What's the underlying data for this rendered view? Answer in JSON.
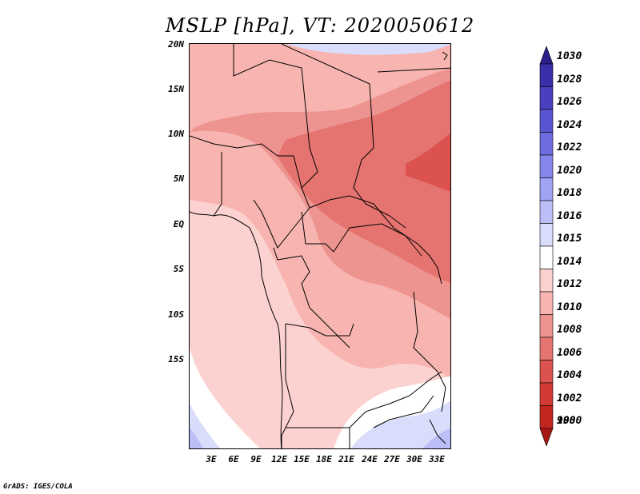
{
  "title": "MSLP [hPa], VT: 2020050612",
  "credit": "GrADS: IGES/COLA",
  "lat_labels": [
    "20N",
    "15N",
    "10N",
    "5N",
    "EQ",
    "5S",
    "10S",
    "15S"
  ],
  "lon_labels": [
    "3E",
    "6E",
    "9E",
    "12E",
    "15E",
    "18E",
    "21E",
    "24E",
    "27E",
    "30E",
    "33E"
  ],
  "colorbar": {
    "labels": [
      "1030",
      "1028",
      "1026",
      "1024",
      "1022",
      "1020",
      "1018",
      "1016",
      "1015",
      "1014",
      "1012",
      "1010",
      "1008",
      "1006",
      "1004",
      "1002",
      "1000",
      "998"
    ],
    "colors": [
      "#2b1f8c",
      "#3a2fa8",
      "#4a40bf",
      "#5a55d2",
      "#6d6ce0",
      "#8585ec",
      "#a0a2f4",
      "#bcbef8",
      "#dadcfc",
      "#ffffff",
      "#fcd2d0",
      "#f7b4b0",
      "#ee9490",
      "#e57470",
      "#dc524e",
      "#d23a36",
      "#c2261f",
      "#a81812"
    ]
  },
  "colors": {
    "land_pale": "#fcd2d0",
    "land_light": "#f7b4b0",
    "land_mid": "#ee9490",
    "land_deep": "#e57470",
    "land_hot": "#dc524e",
    "high_white": "#ffffff",
    "high_blue1": "#dadcfc",
    "high_blue2": "#bcbef8"
  }
}
